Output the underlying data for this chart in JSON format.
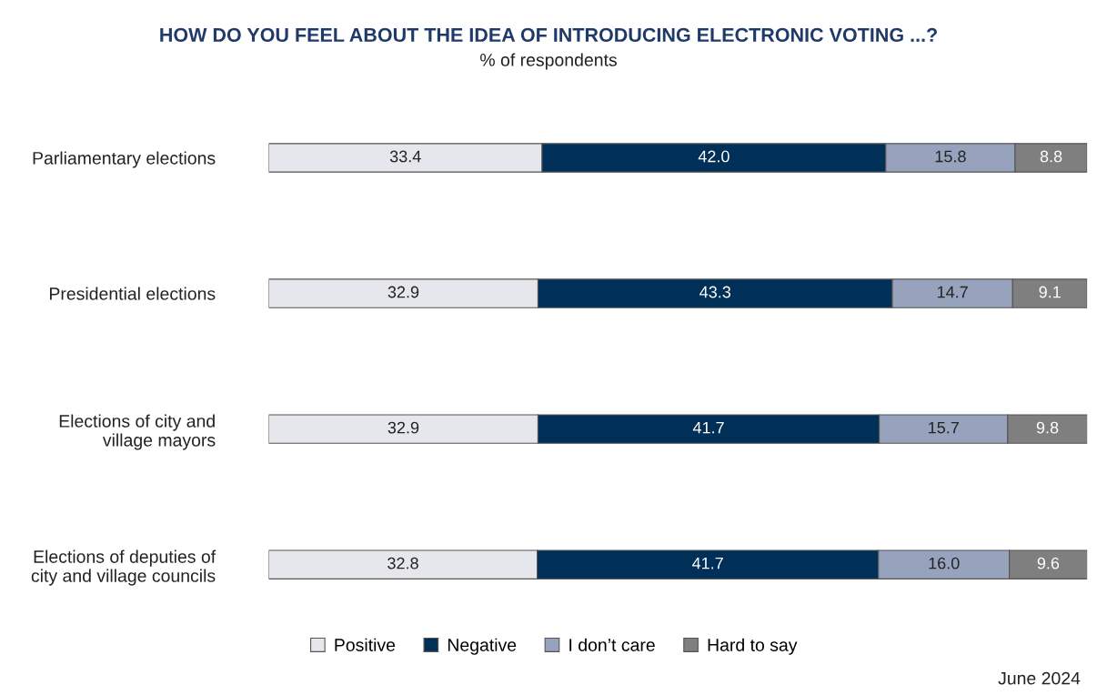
{
  "chart_data": {
    "type": "bar",
    "orientation": "horizontal",
    "stacked": true,
    "title": "HOW DO YOU FEEL ABOUT THE IDEA OF INTRODUCING ELECTRONIC VOTING ...?",
    "subtitle": "% of respondents",
    "categories": [
      "Parliamentary elections",
      "Presidential elections",
      "Elections of city and\nvillage mayors",
      "Elections of deputies of\ncity and village councils"
    ],
    "series": [
      {
        "name": "Positive",
        "color": "#e6e7ec",
        "values": [
          33.4,
          32.9,
          32.9,
          32.8
        ],
        "value_labels": [
          "33.4",
          "32.9",
          "32.9",
          "32.8"
        ]
      },
      {
        "name": "Negative",
        "color": "#003057",
        "values": [
          42.0,
          43.3,
          41.7,
          41.7
        ],
        "value_labels": [
          "42.0",
          "43.3",
          "41.7",
          "41.7"
        ]
      },
      {
        "name": "I don’t care",
        "color": "#97a3bd",
        "values": [
          15.8,
          14.7,
          15.7,
          16.0
        ],
        "value_labels": [
          "15.8",
          "14.7",
          "15.7",
          "16.0"
        ]
      },
      {
        "name": "Hard to say",
        "color": "#7f7f7f",
        "values": [
          8.8,
          9.1,
          9.8,
          9.6
        ],
        "value_labels": [
          "8.8",
          "9.1",
          "9.8",
          "9.6"
        ]
      }
    ],
    "xlim": [
      0,
      100
    ],
    "tick_labels": "y",
    "grid": false,
    "legend": "bottom",
    "annotations": [
      "June 2024"
    ]
  }
}
